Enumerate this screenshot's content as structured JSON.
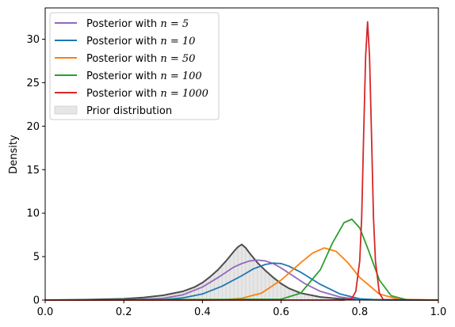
{
  "chart_data": {
    "type": "line",
    "title": "",
    "xlabel": "",
    "ylabel": "Density",
    "xlim": [
      0.0,
      1.0
    ],
    "ylim": [
      0,
      33.6
    ],
    "x_ticks": [
      "0.0",
      "0.2",
      "0.4",
      "0.6",
      "0.8",
      "1.0"
    ],
    "y_ticks": [
      "0",
      "5",
      "10",
      "15",
      "20",
      "25",
      "30"
    ],
    "grid": false,
    "legend_position": "top-left",
    "series": [
      {
        "name": "Posterior with n = 5",
        "legend_prefix": "Posterior with ",
        "legend_math": "n = 5",
        "color": "#9467bd",
        "x": [
          0.0,
          0.2,
          0.3,
          0.35,
          0.4,
          0.44,
          0.48,
          0.5,
          0.52,
          0.54,
          0.56,
          0.58,
          0.6,
          0.62,
          0.66,
          0.7,
          0.75,
          0.8,
          0.9,
          1.0
        ],
        "y": [
          0,
          0.01,
          0.2,
          0.6,
          1.5,
          2.6,
          3.8,
          4.2,
          4.5,
          4.6,
          4.5,
          4.2,
          3.7,
          3.1,
          1.9,
          1.0,
          0.35,
          0.08,
          0.0,
          0
        ]
      },
      {
        "name": "Posterior with n = 10",
        "legend_prefix": "Posterior with ",
        "legend_math": "n = 10",
        "color": "#1f77b4",
        "x": [
          0.0,
          0.3,
          0.35,
          0.4,
          0.45,
          0.5,
          0.53,
          0.56,
          0.58,
          0.6,
          0.62,
          0.65,
          0.7,
          0.75,
          0.8,
          0.85,
          1.0
        ],
        "y": [
          0,
          0.05,
          0.25,
          0.7,
          1.6,
          2.8,
          3.6,
          4.1,
          4.25,
          4.2,
          3.9,
          3.2,
          1.8,
          0.7,
          0.15,
          0.02,
          0
        ]
      },
      {
        "name": "Posterior with n = 50",
        "legend_prefix": "Posterior with ",
        "legend_math": "n = 50",
        "color": "#ff7f0e",
        "x": [
          0.0,
          0.45,
          0.5,
          0.55,
          0.6,
          0.65,
          0.68,
          0.71,
          0.74,
          0.77,
          0.8,
          0.85,
          0.9,
          1.0
        ],
        "y": [
          0,
          0.02,
          0.2,
          0.8,
          2.3,
          4.3,
          5.4,
          6.0,
          5.6,
          4.3,
          2.6,
          0.7,
          0.08,
          0
        ]
      },
      {
        "name": "Posterior with n = 100",
        "legend_prefix": "Posterior with ",
        "legend_math": "n = 100",
        "color": "#2ca02c",
        "x": [
          0.0,
          0.6,
          0.65,
          0.7,
          0.73,
          0.76,
          0.78,
          0.8,
          0.82,
          0.85,
          0.88,
          0.92,
          1.0
        ],
        "y": [
          0,
          0.1,
          0.8,
          3.5,
          6.5,
          8.9,
          9.3,
          8.3,
          6.0,
          2.3,
          0.5,
          0.03,
          0
        ]
      },
      {
        "name": "Posterior with n = 1000",
        "legend_prefix": "Posterior with ",
        "legend_math": "n = 1000",
        "color": "#d62728",
        "x": [
          0.0,
          0.76,
          0.78,
          0.79,
          0.8,
          0.805,
          0.81,
          0.815,
          0.82,
          0.825,
          0.83,
          0.835,
          0.84,
          0.85,
          0.86,
          1.0
        ],
        "y": [
          0,
          0.0,
          0.2,
          1.0,
          4.5,
          9.5,
          19.0,
          28.0,
          32.0,
          28.0,
          19.0,
          9.5,
          4.5,
          0.8,
          0.05,
          0
        ]
      }
    ],
    "prior": {
      "name": "Prior distribution",
      "fill_color": "#e6e6e6",
      "line_color": "#4d4d4d",
      "x": [
        0.0,
        0.1,
        0.2,
        0.25,
        0.3,
        0.35,
        0.38,
        0.4,
        0.42,
        0.44,
        0.46,
        0.48,
        0.49,
        0.5,
        0.51,
        0.52,
        0.54,
        0.56,
        0.58,
        0.6,
        0.62,
        0.65,
        0.7,
        0.75,
        0.8,
        0.9,
        1.0
      ],
      "y": [
        0.0,
        0.05,
        0.15,
        0.3,
        0.55,
        1.0,
        1.5,
        2.0,
        2.7,
        3.5,
        4.5,
        5.6,
        6.1,
        6.4,
        6.0,
        5.4,
        4.3,
        3.4,
        2.6,
        1.9,
        1.35,
        0.8,
        0.35,
        0.15,
        0.05,
        0.01,
        0.0
      ]
    }
  }
}
